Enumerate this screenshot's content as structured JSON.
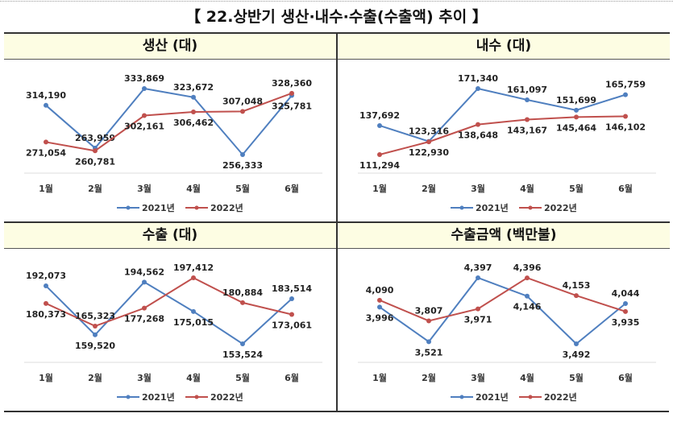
{
  "title": "【 22.상반기 생산·내수·수출(수출액) 추이 】",
  "colors": {
    "s2021": "#4f7fbf",
    "s2022": "#c0504d"
  },
  "chart_data": [
    {
      "type": "line",
      "title": "생산 (대)",
      "categories": [
        "1월",
        "2월",
        "3월",
        "4월",
        "5월",
        "6월"
      ],
      "series": [
        {
          "name": "2021년",
          "values": [
            314190,
            263959,
            333869,
            323672,
            256333,
            325781
          ]
        },
        {
          "name": "2022년",
          "values": [
            271054,
            260781,
            302161,
            306462,
            307048,
            328360
          ]
        }
      ],
      "legend": "bottom"
    },
    {
      "type": "line",
      "title": "내수 (대)",
      "categories": [
        "1월",
        "2월",
        "3월",
        "4월",
        "5월",
        "6월"
      ],
      "series": [
        {
          "name": "2021년",
          "values": [
            137692,
            123316,
            171340,
            161097,
            151699,
            165759
          ]
        },
        {
          "name": "2022년",
          "values": [
            111294,
            122930,
            138648,
            143167,
            145464,
            146102
          ]
        }
      ],
      "legend": "bottom"
    },
    {
      "type": "line",
      "title": "수출 (대)",
      "categories": [
        "1월",
        "2월",
        "3월",
        "4월",
        "5월",
        "6월"
      ],
      "series": [
        {
          "name": "2021년",
          "values": [
            192073,
            159520,
            194562,
            175015,
            153524,
            183514
          ]
        },
        {
          "name": "2022년",
          "values": [
            180373,
            165323,
            177268,
            197412,
            180884,
            173061
          ]
        }
      ],
      "legend": "bottom"
    },
    {
      "type": "line",
      "title": "수출금액 (백만불)",
      "categories": [
        "1월",
        "2월",
        "3월",
        "4월",
        "5월",
        "6월"
      ],
      "series": [
        {
          "name": "2021년",
          "values": [
            3996,
            3521,
            4397,
            4146,
            3492,
            4044
          ]
        },
        {
          "name": "2022년",
          "values": [
            4090,
            3807,
            3971,
            4396,
            4153,
            3935
          ]
        }
      ],
      "legend": "bottom"
    }
  ]
}
